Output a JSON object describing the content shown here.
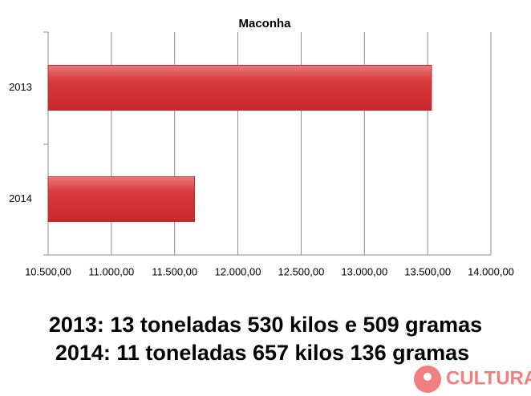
{
  "chart_data": {
    "type": "hbar",
    "title": "Maconha",
    "categories": [
      "2013",
      "2014"
    ],
    "values": [
      13530.509,
      11657.136
    ],
    "color": "#c8282b",
    "xlim": [
      10500,
      14000
    ],
    "xticks": [
      {
        "value": 10500,
        "label": "10.500,00"
      },
      {
        "value": 11000,
        "label": "11.000,00"
      },
      {
        "value": 11500,
        "label": "11.500,00"
      },
      {
        "value": 12000,
        "label": "12.000,00"
      },
      {
        "value": 12500,
        "label": "12.500,00"
      },
      {
        "value": 13000,
        "label": "13.000,00"
      },
      {
        "value": 13500,
        "label": "13.500,00"
      },
      {
        "value": 14000,
        "label": "14.000,00"
      }
    ],
    "grid": true,
    "annotations": [
      "2013: 13 toneladas 530 kilos e 509 gramas",
      "2014: 11 toneladas 657 kilos 136 gramas"
    ],
    "watermark": "CULTURA"
  }
}
